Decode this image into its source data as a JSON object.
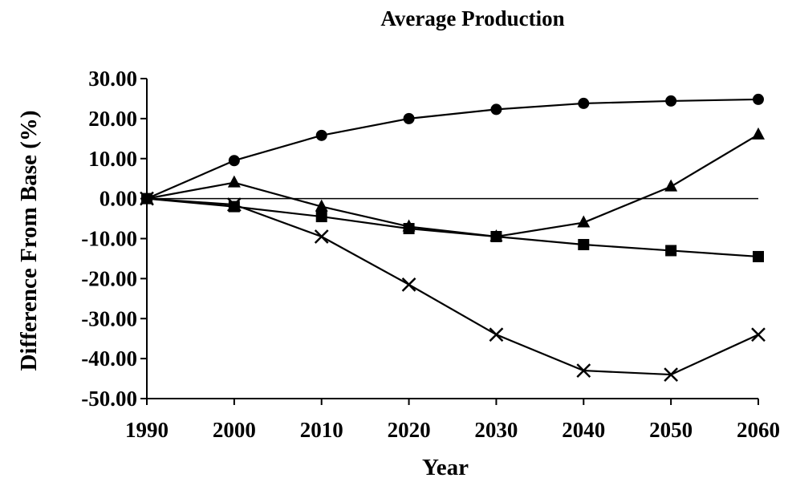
{
  "chart_data": {
    "type": "line",
    "title": "Average Production",
    "xlabel": "Year",
    "ylabel": "Difference From Base (%)",
    "x": [
      1990,
      2000,
      2010,
      2020,
      2030,
      2040,
      2050,
      2060
    ],
    "xlim": [
      1990,
      2060
    ],
    "ylim": [
      -50,
      30
    ],
    "yticks": [
      30,
      20,
      10,
      0,
      -10,
      -20,
      -30,
      -40,
      -50
    ],
    "ytick_labels": [
      "30.00",
      "20.00",
      "10.00",
      "0.00",
      "-10.00",
      "-20.00",
      "-30.00",
      "-40.00",
      "-50.00"
    ],
    "xtick_labels": [
      "1990",
      "2000",
      "2010",
      "2020",
      "2030",
      "2040",
      "2050",
      "2060"
    ],
    "zero_line": true,
    "grid": false,
    "legend": "none",
    "series": [
      {
        "marker": "circle",
        "values": [
          0,
          9.5,
          15.8,
          20,
          22.3,
          23.8,
          24.4,
          24.8
        ]
      },
      {
        "marker": "triangle",
        "values": [
          0,
          4,
          -2,
          -7,
          -9.5,
          -6,
          3,
          16
        ]
      },
      {
        "marker": "square",
        "values": [
          0,
          -2,
          -4.5,
          -7.5,
          -9.5,
          -11.5,
          -13,
          -14.5
        ]
      },
      {
        "marker": "x",
        "values": [
          0,
          -1.5,
          -9.5,
          -21.5,
          -34,
          -43,
          -44,
          -34
        ]
      }
    ]
  }
}
